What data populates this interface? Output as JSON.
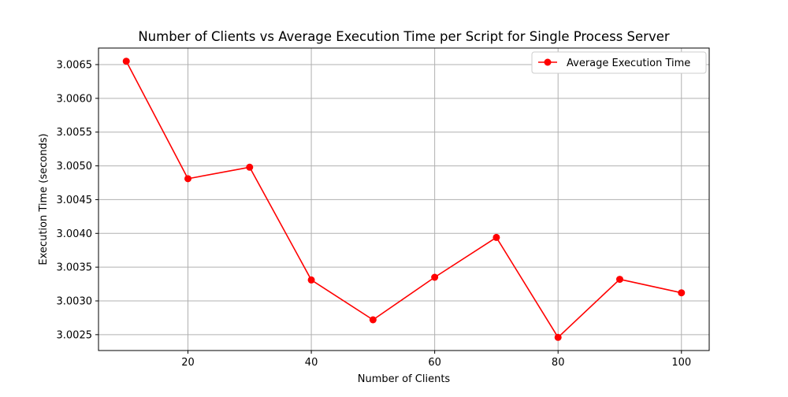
{
  "chart_data": {
    "type": "line",
    "title": "Number of Clients vs Average Execution Time per Script for Single Process Server",
    "xlabel": "Number of Clients",
    "ylabel": "Execution Time (seconds)",
    "x": [
      10,
      20,
      30,
      40,
      50,
      60,
      70,
      80,
      90,
      100
    ],
    "series": [
      {
        "name": "Average Execution Time",
        "color": "#ff0000",
        "marker": "circle",
        "values": [
          3.00655,
          3.00481,
          3.00498,
          3.00331,
          3.00272,
          3.00335,
          3.00394,
          3.00246,
          3.00332,
          3.00312
        ]
      }
    ],
    "xticks": [
      20,
      40,
      60,
      80,
      100
    ],
    "xtick_labels": [
      "20",
      "40",
      "60",
      "80",
      "100"
    ],
    "yticks": [
      3.0025,
      3.003,
      3.0035,
      3.004,
      3.0045,
      3.005,
      3.0055,
      3.006,
      3.0065
    ],
    "ytick_labels": [
      "3.0025",
      "3.0030",
      "3.0035",
      "3.0040",
      "3.0045",
      "3.0050",
      "3.0055",
      "3.0060",
      "3.0065"
    ],
    "xlim": [
      5.5,
      104.5
    ],
    "ylim": [
      3.002265,
      3.006745
    ],
    "grid": true,
    "legend_position": "upper-right"
  }
}
